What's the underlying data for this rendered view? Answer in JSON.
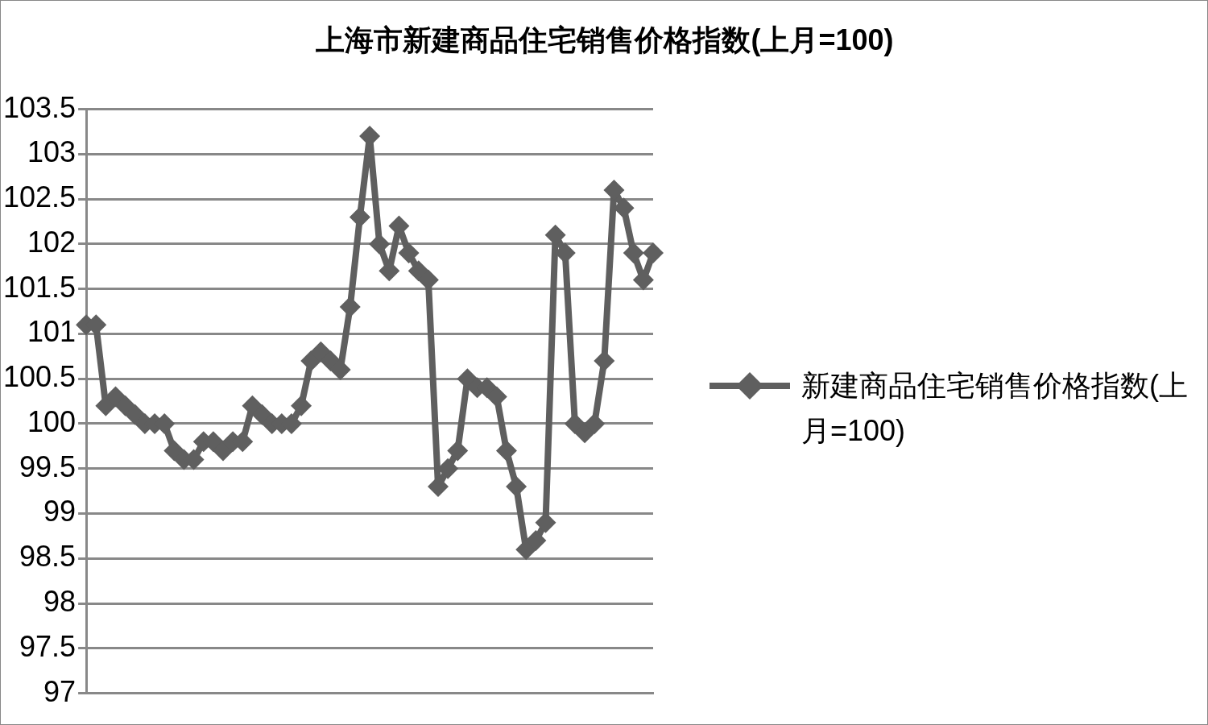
{
  "chart_data": {
    "type": "line",
    "title": "上海市新建商品住宅销售价格指数(上月=100)",
    "categories": [
      null,
      null,
      null,
      null,
      null,
      null,
      null,
      null,
      null,
      null,
      null,
      null,
      null,
      null,
      null,
      null,
      null,
      null,
      null,
      null,
      null,
      null,
      null,
      null,
      null,
      null,
      null,
      null,
      null,
      null,
      null,
      null,
      null,
      null,
      null,
      null,
      null,
      null,
      null,
      null,
      null,
      null,
      null,
      null,
      null,
      null,
      null,
      null,
      null,
      null,
      null,
      null,
      null,
      null,
      null,
      null,
      null,
      null,
      null
    ],
    "series": [
      {
        "name": "新建商品住宅销售价格指数(上月=100)",
        "color": "#5f5f5f",
        "values": [
          101.1,
          101.1,
          100.2,
          100.3,
          100.2,
          100.1,
          100.0,
          100.0,
          100.0,
          99.7,
          99.6,
          99.6,
          99.8,
          99.8,
          99.7,
          99.8,
          99.8,
          100.2,
          100.1,
          100.0,
          100.0,
          100.0,
          100.2,
          100.7,
          100.8,
          100.7,
          100.6,
          101.3,
          102.3,
          103.2,
          102.0,
          101.7,
          102.2,
          101.9,
          101.7,
          101.6,
          99.3,
          99.5,
          99.7,
          100.5,
          100.4,
          100.4,
          100.3,
          99.7,
          99.3,
          98.6,
          98.7,
          98.9,
          102.1,
          101.9,
          100.0,
          99.9,
          100.0,
          100.7,
          102.6,
          102.4,
          101.9,
          101.6,
          101.9
        ]
      }
    ],
    "ylim": [
      97,
      103.5
    ],
    "yticks": [
      97,
      97.5,
      98,
      98.5,
      99,
      99.5,
      100,
      100.5,
      101,
      101.5,
      102,
      102.5,
      103,
      103.5
    ],
    "grid": "y",
    "legend": "right",
    "marker": "diamond",
    "line_style": "solid"
  }
}
